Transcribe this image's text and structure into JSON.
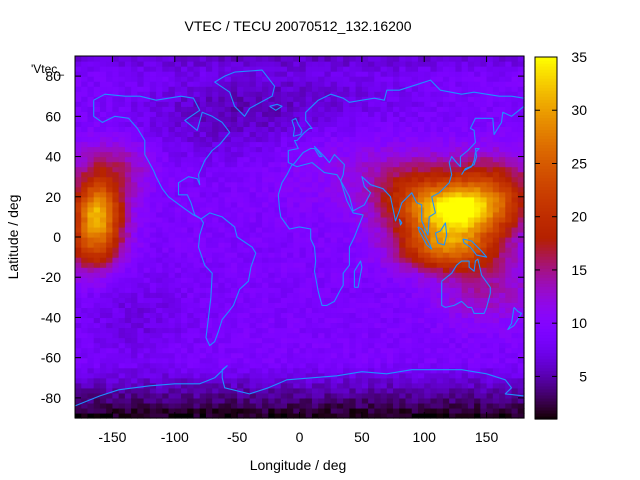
{
  "chart_data": {
    "type": "heatmap",
    "title": "VTEC / TECU 20070512_132.16200",
    "xlabel": "Longitude / deg",
    "ylabel": "Latitude / deg",
    "key_label": "'Vtec_",
    "xlim": [
      -180,
      180
    ],
    "ylim": [
      -90,
      90
    ],
    "x_ticks": [
      -150,
      -100,
      -50,
      0,
      50,
      100,
      150
    ],
    "y_ticks": [
      -80,
      -60,
      -40,
      -20,
      0,
      20,
      40,
      60,
      80
    ],
    "colorbar": {
      "min": 1,
      "max": 35,
      "ticks": [
        5,
        10,
        15,
        20,
        25,
        30,
        35
      ]
    },
    "grid": false,
    "grid_resolution_deg": {
      "lon": 5,
      "lat": 2.5
    },
    "features": [
      {
        "name": "equatorial anomaly west (Pacific)",
        "lon": -160,
        "lat": 13,
        "peak": 30
      },
      {
        "name": "equatorial anomaly east (SE Asia / W Pacific)",
        "lon": 118,
        "lat": 10,
        "peak": 33
      },
      {
        "name": "equatorial anomaly east, southern crest",
        "lon": 118,
        "lat": -5,
        "peak": 27
      }
    ],
    "background_level": 9,
    "coastline_color": "#1e90ff",
    "colormap": "gnuplot rgbformulae 7,5,15 (black-purple-red-yellow)"
  }
}
